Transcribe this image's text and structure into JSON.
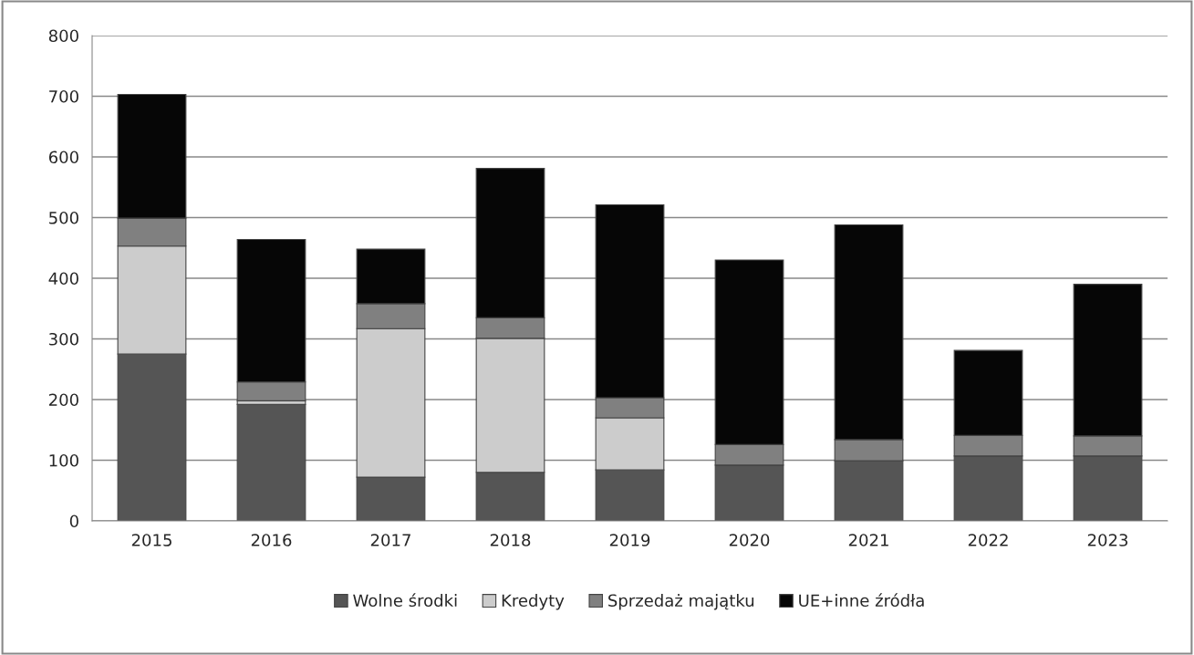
{
  "chart_data": {
    "type": "bar",
    "stacked": true,
    "categories": [
      "2015",
      "2016",
      "2017",
      "2018",
      "2019",
      "2020",
      "2021",
      "2022",
      "2023"
    ],
    "series": [
      {
        "name": "Wolne środki",
        "color": "#555555",
        "values": [
          275,
          192,
          72,
          80,
          84,
          92,
          99,
          107,
          107
        ]
      },
      {
        "name": "Kredyty",
        "color": "#cccccc",
        "values": [
          178,
          6,
          245,
          221,
          86,
          0,
          0,
          0,
          0
        ]
      },
      {
        "name": "Sprzedaż majątku",
        "color": "#808080",
        "values": [
          46,
          31,
          41,
          34,
          33,
          34,
          35,
          34,
          33
        ]
      },
      {
        "name": "UE+inne źródła",
        "color": "#060606",
        "values": [
          204,
          235,
          90,
          246,
          318,
          304,
          354,
          140,
          250
        ]
      }
    ],
    "ylim": [
      0,
      800
    ],
    "yticks": [
      0,
      100,
      200,
      300,
      400,
      500,
      600,
      700,
      800
    ],
    "grid": "y",
    "legend": "bottom"
  }
}
